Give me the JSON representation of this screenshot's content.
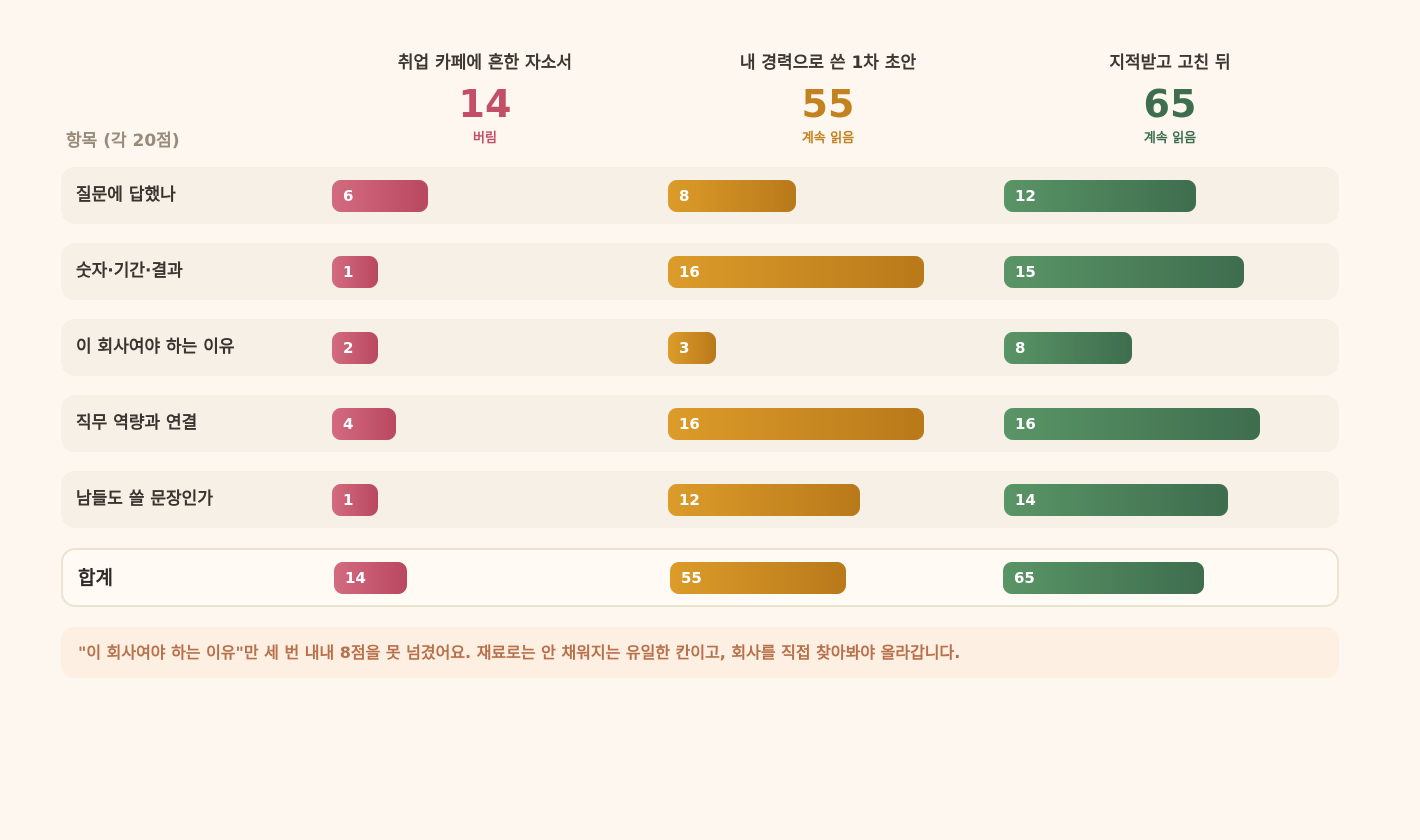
{
  "chart_data": {
    "type": "bar",
    "row_header": "항목 (각 20점)",
    "categories": [
      "질문에 답했나",
      "숫자·기간·결과",
      "이 회사여야 하는 이유",
      "직무 역량과 연결",
      "남들도 쓸 문장인가"
    ],
    "max_per_item": 20,
    "series": [
      {
        "name": "취업 카페에 흔한 자소서",
        "total": 14,
        "verdict": "버림",
        "color": "#c24f67",
        "values": [
          6,
          1,
          2,
          4,
          1
        ]
      },
      {
        "name": "내 경력으로 쓴 1차 초안",
        "total": 55,
        "verdict": "계속 읽음",
        "color": "#c2821f",
        "values": [
          8,
          16,
          3,
          16,
          12
        ]
      },
      {
        "name": "지적받고 고친 뒤",
        "total": 65,
        "verdict": "계속 읽음",
        "color": "#3f6e4f",
        "values": [
          12,
          15,
          8,
          16,
          14
        ]
      }
    ],
    "total_label": "합계",
    "note": "\"이 회사여야 하는 이유\"만 세 번 내내 8점을 못 넘겼어요. 재료로는 안 채워지는 유일한 칸이고, 회사를 직접 찾아봐야 올라갑니다."
  }
}
